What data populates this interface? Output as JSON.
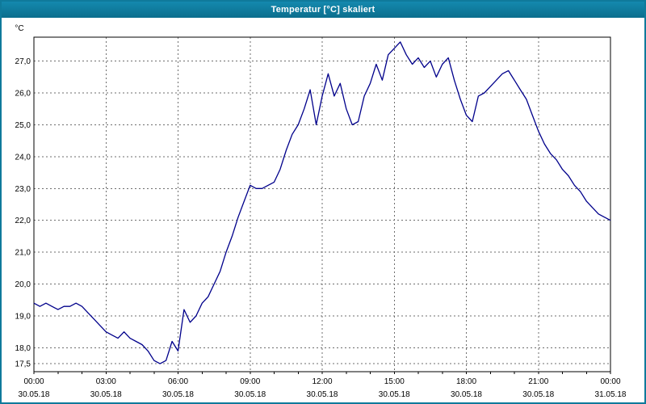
{
  "window": {
    "title": "Temperatur [°C] skaliert"
  },
  "chart_data": {
    "type": "line",
    "title": "Temperatur [°C] skaliert",
    "xlabel": "",
    "ylabel": "°C",
    "line_color": "#00008b",
    "grid": true,
    "legend_position": "none",
    "xlim": [
      0,
      24
    ],
    "ylim": [
      17.25,
      27.75
    ],
    "minor_tick_hours": 1,
    "y_ticks": [
      {
        "value": 27.0,
        "label": "27,0"
      },
      {
        "value": 26.0,
        "label": "26,0"
      },
      {
        "value": 25.0,
        "label": "25,0"
      },
      {
        "value": 24.0,
        "label": "24,0"
      },
      {
        "value": 23.0,
        "label": "23,0"
      },
      {
        "value": 22.0,
        "label": "22,0"
      },
      {
        "value": 21.0,
        "label": "21,0"
      },
      {
        "value": 20.0,
        "label": "20,0"
      },
      {
        "value": 19.0,
        "label": "19,0"
      },
      {
        "value": 18.0,
        "label": "18,0"
      },
      {
        "value": 17.5,
        "label": "17,5"
      }
    ],
    "x_ticks": [
      {
        "hour": 0,
        "time": "00:00",
        "date": "30.05.18"
      },
      {
        "hour": 3,
        "time": "03:00",
        "date": "30.05.18"
      },
      {
        "hour": 6,
        "time": "06:00",
        "date": "30.05.18"
      },
      {
        "hour": 9,
        "time": "09:00",
        "date": "30.05.18"
      },
      {
        "hour": 12,
        "time": "12:00",
        "date": "30.05.18"
      },
      {
        "hour": 15,
        "time": "15:00",
        "date": "30.05.18"
      },
      {
        "hour": 18,
        "time": "18:00",
        "date": "30.05.18"
      },
      {
        "hour": 21,
        "time": "21:00",
        "date": "30.05.18"
      },
      {
        "hour": 24,
        "time": "00:00",
        "date": "31.05.18"
      }
    ],
    "series": [
      {
        "name": "Temperatur",
        "x_start": 0,
        "x_step": 0.25,
        "values": [
          19.4,
          19.3,
          19.4,
          19.3,
          19.2,
          19.3,
          19.3,
          19.4,
          19.3,
          19.1,
          18.9,
          18.7,
          18.5,
          18.4,
          18.3,
          18.5,
          18.3,
          18.2,
          18.1,
          17.9,
          17.6,
          17.5,
          17.6,
          18.2,
          17.9,
          19.2,
          18.8,
          19.0,
          19.4,
          19.6,
          20.0,
          20.4,
          21.0,
          21.5,
          22.1,
          22.6,
          23.1,
          23.0,
          23.0,
          23.1,
          23.2,
          23.6,
          24.2,
          24.7,
          25.0,
          25.5,
          26.1,
          25.0,
          25.9,
          26.6,
          25.9,
          26.3,
          25.5,
          25.0,
          25.1,
          25.9,
          26.3,
          26.9,
          26.4,
          27.2,
          27.4,
          27.6,
          27.2,
          26.9,
          27.1,
          26.8,
          27.0,
          26.5,
          26.9,
          27.1,
          26.4,
          25.8,
          25.3,
          25.1,
          25.9,
          26.0,
          26.2,
          26.4,
          26.6,
          26.7,
          26.4,
          26.1,
          25.8,
          25.3,
          24.8,
          24.4,
          24.1,
          23.9,
          23.6,
          23.4,
          23.1,
          22.9,
          22.6,
          22.4,
          22.2,
          22.1,
          22.0
        ]
      }
    ]
  }
}
